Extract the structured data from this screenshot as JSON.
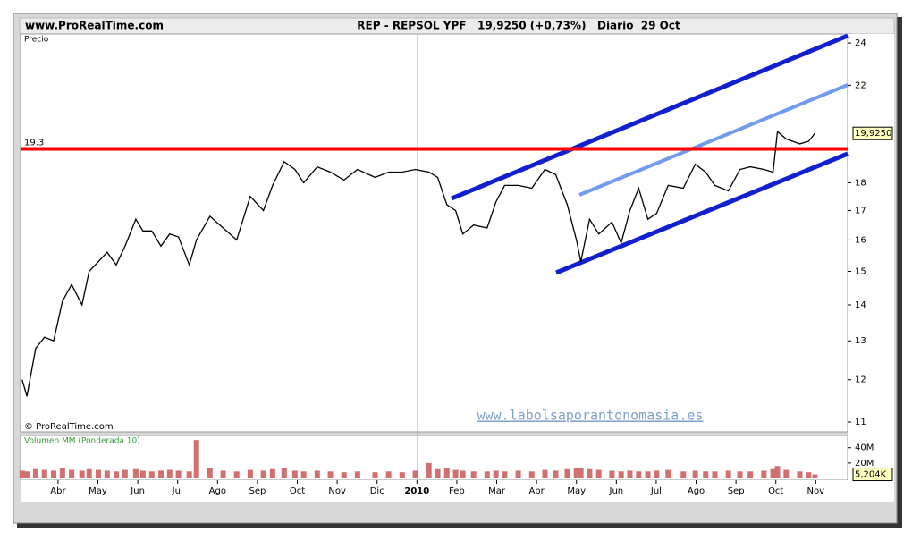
{
  "chart_data": [
    {
      "type": "line",
      "title": "REP - REPSOL YPF   19,9250 (+0,73%)   Diario  29 Oct",
      "site": "www.ProRealTime.com",
      "label": "Precio",
      "source": "© ProRealTime.com",
      "watermark": "www.labolsaporantonomasia.es",
      "log_scale": true,
      "color": "#000000",
      "x": [
        -0.9,
        -0.78,
        -0.56,
        -0.34,
        -0.11,
        0.11,
        0.34,
        0.6,
        0.78,
        1.01,
        1.23,
        1.46,
        1.68,
        1.95,
        2.13,
        2.35,
        2.58,
        2.8,
        3.02,
        3.29,
        3.47,
        3.81,
        4.14,
        4.48,
        4.82,
        5.15,
        5.38,
        5.67,
        5.94,
        6.16,
        6.5,
        6.83,
        7.17,
        7.51,
        7.95,
        8.29,
        8.63,
        8.96,
        9.3,
        9.52,
        9.75,
        9.97,
        10.15,
        10.42,
        10.76,
        10.98,
        11.2,
        11.54,
        11.88,
        12.21,
        12.48,
        12.77,
        13.0,
        13.11,
        13.33,
        13.56,
        13.89,
        14.12,
        14.34,
        14.56,
        14.79,
        15.01,
        15.3,
        15.68,
        15.98,
        16.24,
        16.47,
        16.81,
        17.1,
        17.36,
        17.7,
        17.93,
        18.04,
        18.26,
        18.6,
        18.82,
        18.98
      ],
      "values": [
        12.0,
        11.6,
        12.8,
        13.1,
        13.0,
        14.1,
        14.6,
        14.0,
        15.0,
        15.3,
        15.6,
        15.2,
        15.8,
        16.7,
        16.3,
        16.3,
        15.8,
        16.2,
        16.1,
        15.2,
        16.0,
        16.8,
        16.4,
        16.0,
        17.5,
        17.0,
        17.9,
        18.8,
        18.5,
        18.0,
        18.6,
        18.4,
        18.1,
        18.5,
        18.2,
        18.4,
        18.4,
        18.5,
        18.4,
        18.2,
        17.2,
        17.0,
        16.2,
        16.5,
        16.4,
        17.3,
        17.9,
        17.9,
        17.8,
        18.5,
        18.3,
        17.2,
        16.0,
        15.3,
        16.7,
        16.2,
        16.6,
        15.9,
        17.0,
        17.8,
        16.7,
        16.9,
        17.9,
        17.8,
        18.7,
        18.4,
        17.9,
        17.7,
        18.5,
        18.6,
        18.5,
        18.4,
        20.0,
        19.7,
        19.5,
        19.6,
        19.925
      ],
      "xlim": [
        -0.94,
        19.8
      ],
      "ylim": [
        10.78,
        24.45
      ],
      "yticks": [
        11,
        12,
        13,
        14,
        15,
        16,
        17,
        18,
        22,
        24
      ],
      "hline": 19.3,
      "hline_color": "#ff0000",
      "last_label": {
        "value": 19.925,
        "label": "19,9250"
      }
    },
    {
      "type": "bar",
      "label": "Volumen MM (Ponderada 10)",
      "color": "#d07070",
      "x": [
        -0.9,
        -0.78,
        -0.56,
        -0.34,
        -0.11,
        0.11,
        0.34,
        0.6,
        0.78,
        1.01,
        1.23,
        1.46,
        1.68,
        1.95,
        2.13,
        2.35,
        2.58,
        2.8,
        3.02,
        3.29,
        3.47,
        3.81,
        4.14,
        4.48,
        4.82,
        5.15,
        5.38,
        5.67,
        5.94,
        6.16,
        6.5,
        6.83,
        7.17,
        7.51,
        7.95,
        8.29,
        8.63,
        8.96,
        9.3,
        9.52,
        9.75,
        9.97,
        10.15,
        10.42,
        10.76,
        10.98,
        11.2,
        11.54,
        11.88,
        12.21,
        12.48,
        12.77,
        13.0,
        13.11,
        13.33,
        13.56,
        13.89,
        14.12,
        14.34,
        14.56,
        14.79,
        15.01,
        15.3,
        15.68,
        15.98,
        16.24,
        16.47,
        16.81,
        17.1,
        17.36,
        17.7,
        17.93,
        18.04,
        18.26,
        18.6,
        18.82,
        18.98
      ],
      "values": [
        10,
        9,
        12,
        11,
        10,
        13,
        11,
        10,
        12,
        11,
        10,
        9,
        11,
        12,
        10,
        9,
        10,
        11,
        10,
        9,
        50,
        14,
        10,
        9,
        11,
        10,
        12,
        13,
        10,
        9,
        10,
        9,
        8,
        9,
        8,
        9,
        8,
        10,
        20,
        12,
        14,
        11,
        10,
        9,
        9,
        10,
        9,
        10,
        9,
        11,
        10,
        12,
        14,
        13,
        12,
        11,
        10,
        9,
        10,
        9,
        9,
        10,
        11,
        9,
        10,
        9,
        9,
        10,
        9,
        9,
        10,
        12,
        16,
        11,
        9,
        8,
        5.204
      ],
      "xlim": [
        -0.94,
        19.8
      ],
      "ylim": [
        0,
        56
      ],
      "yticks": [
        {
          "value": 20,
          "label": "20M"
        },
        {
          "value": 40,
          "label": "40M"
        }
      ],
      "xticks": [
        {
          "value": 0,
          "label": "Abr"
        },
        {
          "value": 1,
          "label": "May"
        },
        {
          "value": 2,
          "label": "Jun"
        },
        {
          "value": 3,
          "label": "Jul"
        },
        {
          "value": 4,
          "label": "Ago"
        },
        {
          "value": 5,
          "label": "Sep"
        },
        {
          "value": 6,
          "label": "Oct"
        },
        {
          "value": 7,
          "label": "Nov"
        },
        {
          "value": 8,
          "label": "Dic"
        },
        {
          "value": 9,
          "label": "2010"
        },
        {
          "value": 10,
          "label": "Feb"
        },
        {
          "value": 11,
          "label": "Mar"
        },
        {
          "value": 12,
          "label": "Abr"
        },
        {
          "value": 13,
          "label": "May"
        },
        {
          "value": 14,
          "label": "Jun"
        },
        {
          "value": 15,
          "label": "Jul"
        },
        {
          "value": 16,
          "label": "Ago"
        },
        {
          "value": 17,
          "label": "Sep"
        },
        {
          "value": 18,
          "label": "Oct"
        },
        {
          "value": 19,
          "label": "Nov"
        }
      ],
      "last_label": {
        "value": 5.204,
        "label": "5,204K"
      }
    }
  ]
}
